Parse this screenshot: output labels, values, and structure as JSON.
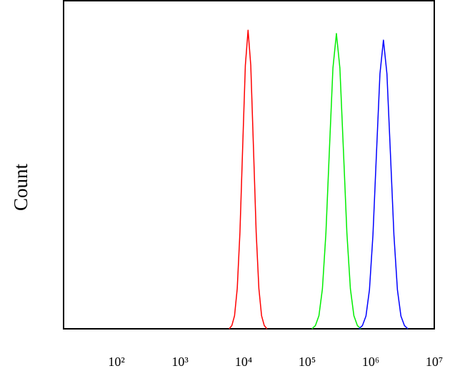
{
  "chart_data": {
    "type": "histogram-line",
    "y_label": "Count",
    "xscale": "log",
    "xlim": [
      14.7,
      10000000
    ],
    "ylim": [
      0,
      100
    ],
    "xticks": [
      {
        "value": 100,
        "label": "10²"
      },
      {
        "value": 1000,
        "label": "10³"
      },
      {
        "value": 10000,
        "label": "10⁴"
      },
      {
        "value": 100000,
        "label": "10⁵"
      },
      {
        "value": 1000000,
        "label": "10⁶"
      },
      {
        "value": 10000000,
        "label": "10⁷"
      }
    ],
    "series": [
      {
        "color": "#ff0000",
        "x": [
          5920,
          6530,
          7200,
          7940,
          8760,
          9660,
          10650,
          11750,
          12960,
          14290,
          15760,
          17380,
          19170,
          21130,
          23310
        ],
        "values": [
          0,
          1.0,
          4.0,
          12.3,
          29.5,
          55.2,
          80.3,
          91,
          80.3,
          55.2,
          29.5,
          12.3,
          4.0,
          1.0,
          0
        ]
      },
      {
        "color": "#00ee00",
        "x": [
          118850,
          134900,
          153110,
          173780,
          197240,
          223870,
          254100,
          288400,
          327340,
          371540,
          421700,
          478630,
          543250,
          616600,
          699840
        ],
        "values": [
          0,
          1.0,
          4.0,
          12.2,
          29.2,
          54.6,
          79.4,
          90,
          79.4,
          54.6,
          29.2,
          12.2,
          4.0,
          1.0,
          0
        ]
      },
      {
        "color": "#0000ff",
        "x": [
          653100,
          741310,
          841400,
          954990,
          1083900,
          1230300,
          1396400,
          1584900,
          1798900,
          2041700,
          2317400,
          2630300,
          2985400,
          3388400,
          3845900
        ],
        "values": [
          0,
          1.0,
          3.9,
          11.9,
          28.6,
          53.4,
          77.7,
          88,
          77.7,
          53.4,
          28.6,
          11.9,
          3.9,
          1.0,
          0
        ]
      }
    ]
  }
}
